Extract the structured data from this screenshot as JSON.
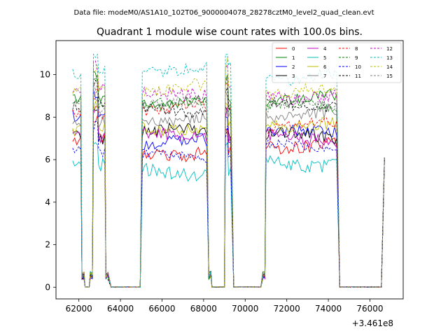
{
  "chart_data": {
    "type": "line",
    "suptitle": "Data file: modeM0/AS1A10_102T06_9000004078_28278cztM0_level2_quad_clean.evt",
    "title": "Quadrant 1 module wise count rates with 100.0s bins.",
    "xlabel": "",
    "ylabel": "",
    "offset_label": "+3.461e8",
    "xlim": [
      60900,
      77600
    ],
    "ylim": [
      -0.55,
      11.6
    ],
    "xticks": [
      62000,
      64000,
      66000,
      68000,
      70000,
      72000,
      74000,
      76000
    ],
    "xtick_labels": [
      "62000",
      "64000",
      "66000",
      "68000",
      "70000",
      "72000",
      "74000",
      "76000"
    ],
    "yticks": [
      0,
      2,
      4,
      6,
      8,
      10
    ],
    "ytick_labels": [
      "0",
      "2",
      "4",
      "6",
      "8",
      "10"
    ],
    "legend_position": "top-right",
    "segments": [
      {
        "start": 61700,
        "end": 62100,
        "level": "on"
      },
      {
        "start": 62150,
        "end": 62250,
        "level": "drop"
      },
      {
        "start": 62300,
        "end": 62500,
        "level": "zero"
      },
      {
        "start": 62550,
        "end": 62650,
        "level": "drop"
      },
      {
        "start": 62700,
        "end": 62900,
        "level": "peak"
      },
      {
        "start": 62950,
        "end": 63250,
        "level": "on"
      },
      {
        "start": 63300,
        "end": 63450,
        "level": "drop"
      },
      {
        "start": 63550,
        "end": 64950,
        "level": "zero"
      },
      {
        "start": 65050,
        "end": 68150,
        "level": "on"
      },
      {
        "start": 68250,
        "end": 68350,
        "level": "drop"
      },
      {
        "start": 68400,
        "end": 69000,
        "level": "zero"
      },
      {
        "start": 69050,
        "end": 69150,
        "level": "peak"
      },
      {
        "start": 69200,
        "end": 69350,
        "level": "on"
      },
      {
        "start": 69450,
        "end": 70750,
        "level": "zero"
      },
      {
        "start": 70850,
        "end": 70950,
        "level": "drop"
      },
      {
        "start": 71000,
        "end": 74450,
        "level": "on"
      },
      {
        "start": 74550,
        "end": 76600,
        "level": "zero"
      },
      {
        "start": 76700,
        "end": 76700,
        "level": "end"
      }
    ],
    "series": [
      {
        "name": "0",
        "color": "#ff0000",
        "dash": "solid",
        "base": [
          6.9,
          6.3,
          6.7
        ],
        "amp": 0.3
      },
      {
        "name": "1",
        "color": "#008000",
        "dash": "solid",
        "base": [
          8.8,
          8.7,
          8.9
        ],
        "amp": 0.25
      },
      {
        "name": "2",
        "color": "#0000ff",
        "dash": "solid",
        "base": [
          7.9,
          6.8,
          7.3
        ],
        "amp": 0.3
      },
      {
        "name": "3",
        "color": "#000000",
        "dash": "solid",
        "base": [
          7.1,
          7.3,
          7.1
        ],
        "amp": 0.3
      },
      {
        "name": "4",
        "color": "#bf00bf",
        "dash": "solid",
        "base": [
          7.2,
          7.1,
          7.0
        ],
        "amp": 0.3
      },
      {
        "name": "5",
        "color": "#00bfbf",
        "dash": "solid",
        "base": [
          5.8,
          5.4,
          5.8
        ],
        "amp": 0.3
      },
      {
        "name": "6",
        "color": "#bfbf00",
        "dash": "solid",
        "base": [
          7.4,
          7.5,
          7.7
        ],
        "amp": 0.3
      },
      {
        "name": "7",
        "color": "#808080",
        "dash": "solid",
        "base": [
          7.6,
          7.9,
          8.1
        ],
        "amp": 0.3
      },
      {
        "name": "8",
        "color": "#ff0000",
        "dash": "dashed",
        "base": [
          8.0,
          8.4,
          7.6
        ],
        "amp": 0.25
      },
      {
        "name": "9",
        "color": "#008000",
        "dash": "dashed",
        "base": [
          8.6,
          8.6,
          8.5
        ],
        "amp": 0.25
      },
      {
        "name": "10",
        "color": "#0000ff",
        "dash": "dashed",
        "base": [
          6.5,
          6.2,
          6.6
        ],
        "amp": 0.25
      },
      {
        "name": "11",
        "color": "#000000",
        "dash": "dashed",
        "base": [
          8.6,
          8.3,
          8.6
        ],
        "amp": 0.25
      },
      {
        "name": "12",
        "color": "#bf00bf",
        "dash": "dashed",
        "base": [
          9.3,
          9.2,
          9.0
        ],
        "amp": 0.3
      },
      {
        "name": "13",
        "color": "#00bfbf",
        "dash": "dashed",
        "base": [
          10.0,
          10.3,
          9.9
        ],
        "amp": 0.3
      },
      {
        "name": "14",
        "color": "#bfbf00",
        "dash": "dashed",
        "base": [
          9.2,
          9.4,
          9.2
        ],
        "amp": 0.3
      },
      {
        "name": "15",
        "color": "#808080",
        "dash": "dashed",
        "base": [
          8.4,
          8.6,
          8.5
        ],
        "amp": 0.25
      }
    ]
  }
}
